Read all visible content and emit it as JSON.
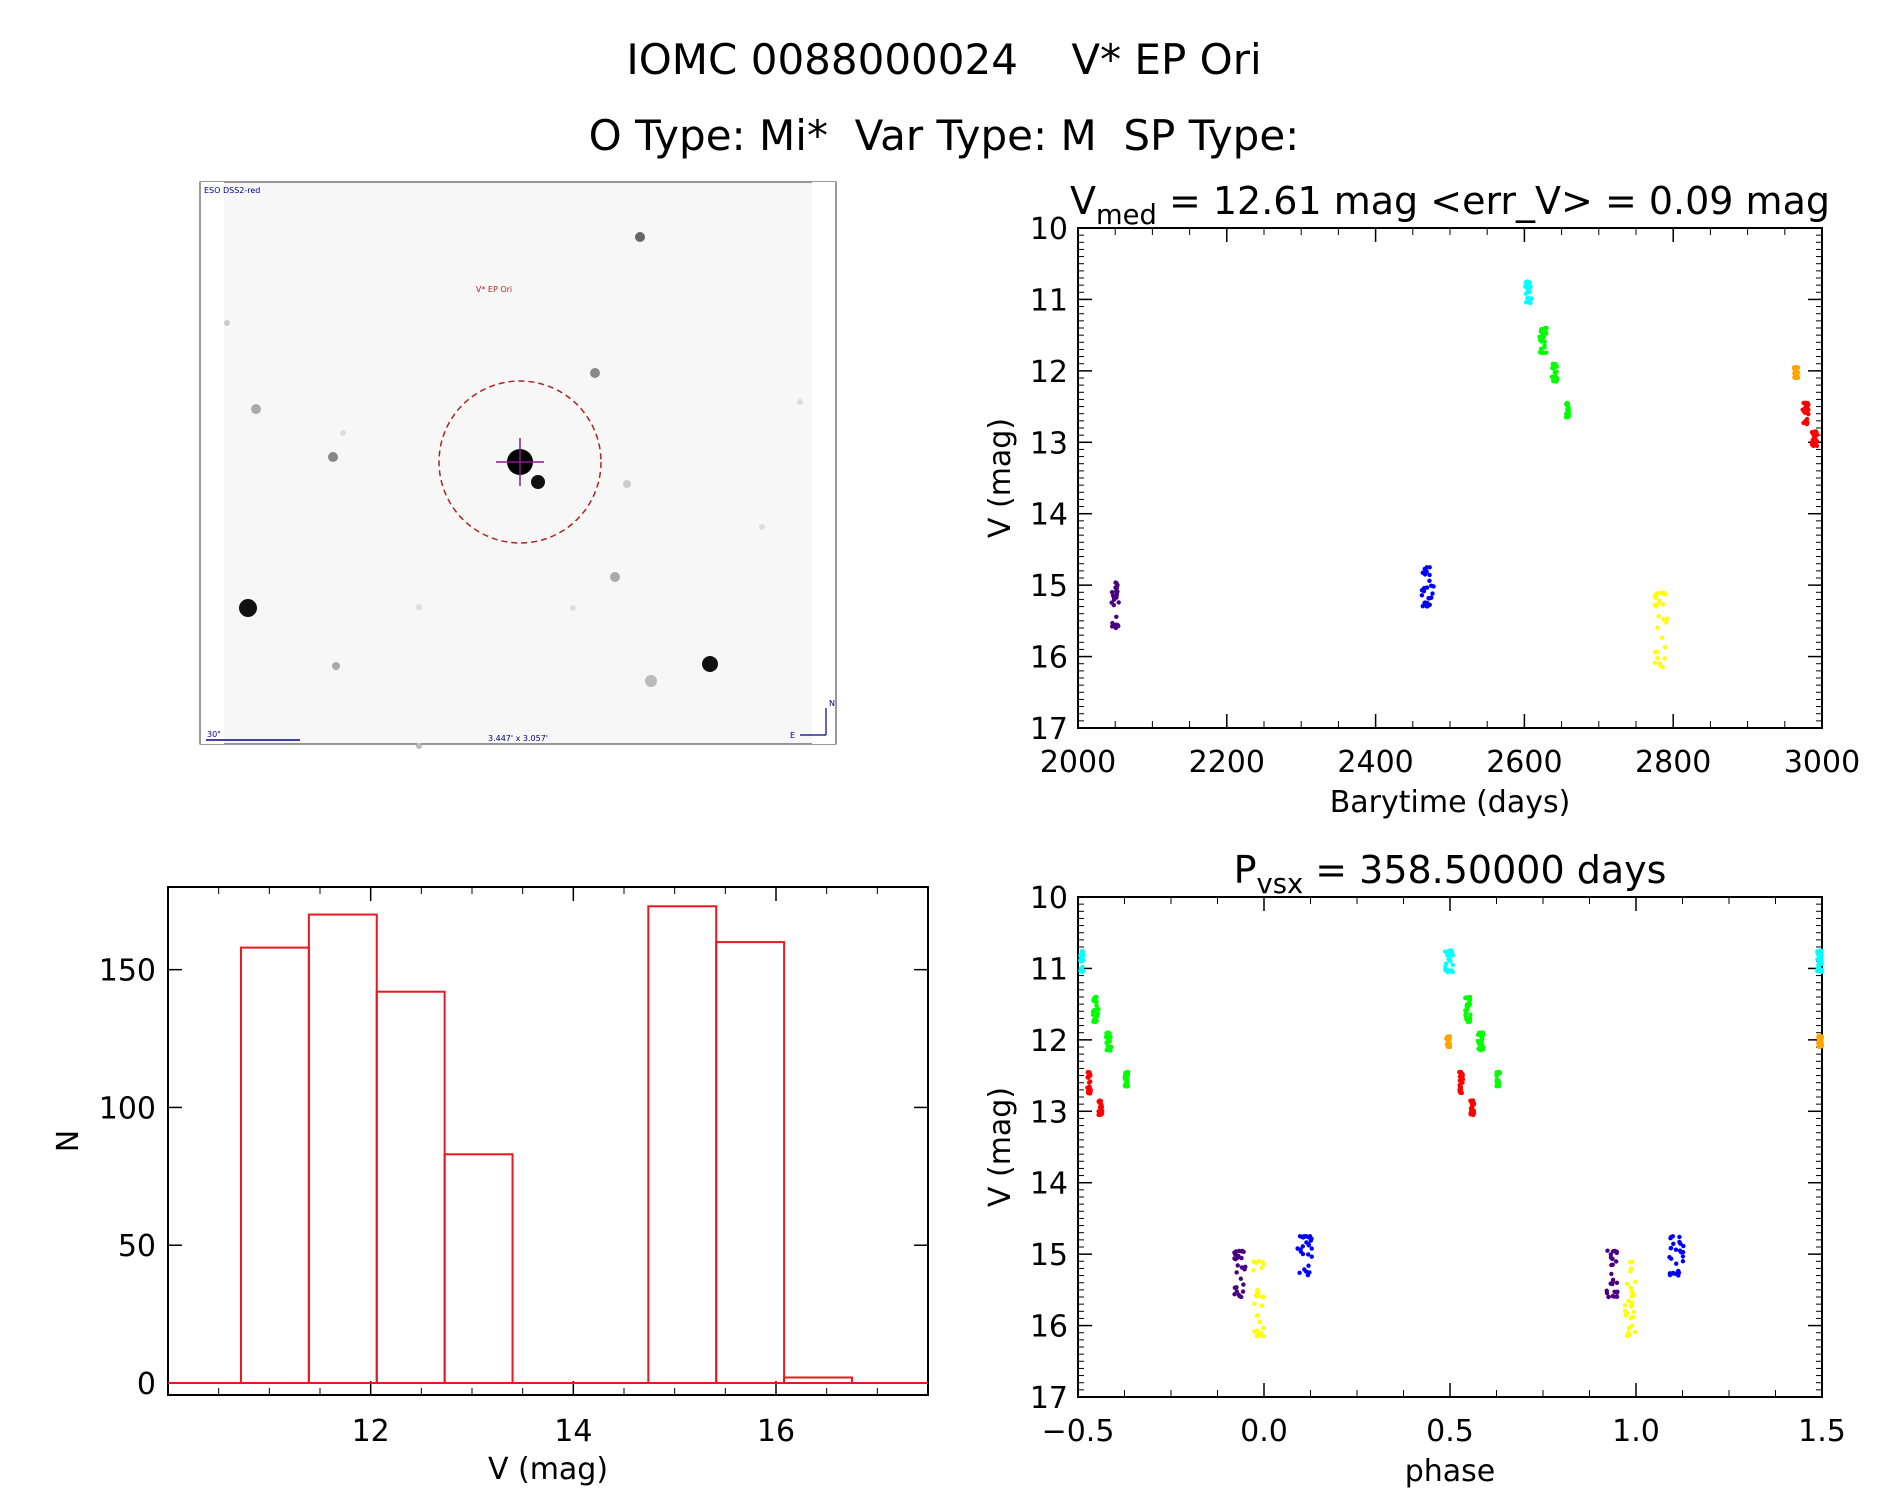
{
  "header": {
    "title": "IOMC 0088000024    V* EP Ori",
    "subtitle": "O Type: Mi*  Var Type: M  SP Type:"
  },
  "sky_image": {
    "survey_label": "ESO DSS2-red",
    "object_label": "V* EP Ori",
    "scale_label": "30\"",
    "fov_label": "3.447' x 3.057'",
    "north_label": "N",
    "east_label": "E"
  },
  "colors": {
    "histogram": "#e8191e",
    "circle": "#b22222",
    "crosshair": "#8b1a8b",
    "label_blue": "#00008b"
  },
  "chart_data": [
    {
      "type": "scatter",
      "id": "lightcurve",
      "title_parts": [
        "V",
        "med",
        " = 12.61 mag <err_V> = 0.09 mag"
      ],
      "xlabel": "Barytime (days)",
      "ylabel": "V (mag)",
      "xlim": [
        2000,
        3000
      ],
      "ylim": [
        17,
        10
      ],
      "xticks": [
        "2000",
        "2200",
        "2400",
        "2600",
        "2800",
        "3000"
      ],
      "yticks": [
        "10",
        "11",
        "12",
        "13",
        "14",
        "15",
        "16",
        "17"
      ],
      "groups": [
        {
          "color": "#4b0082",
          "x": [
            2044,
            2055
          ],
          "y": [
            14.95,
            15.6
          ]
        },
        {
          "color": "#0000ff",
          "x": [
            2462,
            2478
          ],
          "y": [
            14.75,
            15.3
          ]
        },
        {
          "color": "#00ffff",
          "x": [
            2601,
            2610
          ],
          "y": [
            10.75,
            11.05
          ]
        },
        {
          "color": "#00ff00",
          "x": [
            2620,
            2630
          ],
          "y": [
            11.4,
            11.75
          ]
        },
        {
          "color": "#00ff00",
          "x": [
            2637,
            2645
          ],
          "y": [
            11.9,
            12.15
          ]
        },
        {
          "color": "#00ff00",
          "x": [
            2656,
            2660
          ],
          "y": [
            12.45,
            12.65
          ]
        },
        {
          "color": "#ffff00",
          "x": [
            2775,
            2792
          ],
          "y": [
            15.1,
            16.15
          ]
        },
        {
          "color": "#ffa500",
          "x": [
            2962,
            2968
          ],
          "y": [
            11.95,
            12.1
          ]
        },
        {
          "color": "#ff0000",
          "x": [
            2974,
            2982
          ],
          "y": [
            12.45,
            12.75
          ]
        },
        {
          "color": "#ff0000",
          "x": [
            2986,
            2994
          ],
          "y": [
            12.85,
            13.05
          ]
        }
      ]
    },
    {
      "type": "bar",
      "id": "histogram",
      "xlabel": "V (mag)",
      "ylabel": "N",
      "xlim": [
        10.0,
        17.5
      ],
      "ylim": [
        0,
        180
      ],
      "xticks": [
        "12",
        "14",
        "16"
      ],
      "yticks": [
        "0",
        "50",
        "100",
        "150"
      ],
      "bins": [
        {
          "x0": 10.72,
          "x1": 11.39,
          "value": 158
        },
        {
          "x0": 11.39,
          "x1": 12.06,
          "value": 170
        },
        {
          "x0": 12.06,
          "x1": 12.73,
          "value": 142
        },
        {
          "x0": 12.73,
          "x1": 13.4,
          "value": 83
        },
        {
          "x0": 13.4,
          "x1": 14.07,
          "value": 0
        },
        {
          "x0": 14.07,
          "x1": 14.74,
          "value": 0
        },
        {
          "x0": 14.74,
          "x1": 15.41,
          "value": 173
        },
        {
          "x0": 15.41,
          "x1": 16.08,
          "value": 160
        },
        {
          "x0": 16.08,
          "x1": 16.75,
          "value": 2
        }
      ]
    },
    {
      "type": "scatter",
      "id": "phased",
      "title_parts": [
        "P",
        "vsx",
        " = 358.50000 days"
      ],
      "xlabel": "phase",
      "ylabel": "V (mag)",
      "xlim": [
        -0.5,
        1.5
      ],
      "ylim": [
        17,
        10
      ],
      "xticks": [
        "−0.5",
        "0.0",
        "0.5",
        "1.0",
        "1.5"
      ],
      "yticks": [
        "10",
        "11",
        "12",
        "13",
        "14",
        "15",
        "16",
        "17"
      ],
      "groups": [
        {
          "color": "#00ffff",
          "x": [
            -0.495,
            -0.485
          ],
          "y": [
            10.75,
            11.05
          ]
        },
        {
          "color": "#00ff00",
          "x": [
            -0.46,
            -0.445
          ],
          "y": [
            11.4,
            11.75
          ]
        },
        {
          "color": "#00ff00",
          "x": [
            -0.425,
            -0.41
          ],
          "y": [
            11.9,
            12.15
          ]
        },
        {
          "color": "#00ff00",
          "x": [
            -0.375,
            -0.365
          ],
          "y": [
            12.45,
            12.65
          ]
        },
        {
          "color": "#ff0000",
          "x": [
            -0.475,
            -0.465
          ],
          "y": [
            12.45,
            12.75
          ]
        },
        {
          "color": "#ff0000",
          "x": [
            -0.445,
            -0.435
          ],
          "y": [
            12.85,
            13.05
          ]
        },
        {
          "color": "#4b0082",
          "x": [
            -0.08,
            -0.05
          ],
          "y": [
            14.95,
            15.6
          ]
        },
        {
          "color": "#ffff00",
          "x": [
            -0.03,
            0.0
          ],
          "y": [
            15.1,
            16.15
          ]
        },
        {
          "color": "#0000ff",
          "x": [
            0.09,
            0.13
          ],
          "y": [
            14.75,
            15.3
          ]
        },
        {
          "color": "#00ffff",
          "x": [
            0.485,
            0.51
          ],
          "y": [
            10.75,
            11.05
          ]
        },
        {
          "color": "#ffa500",
          "x": [
            0.49,
            0.5
          ],
          "y": [
            11.95,
            12.1
          ]
        },
        {
          "color": "#00ff00",
          "x": [
            0.54,
            0.555
          ],
          "y": [
            11.4,
            11.75
          ]
        },
        {
          "color": "#00ff00",
          "x": [
            0.575,
            0.59
          ],
          "y": [
            11.9,
            12.15
          ]
        },
        {
          "color": "#00ff00",
          "x": [
            0.625,
            0.635
          ],
          "y": [
            12.45,
            12.65
          ]
        },
        {
          "color": "#ff0000",
          "x": [
            0.525,
            0.535
          ],
          "y": [
            12.45,
            12.75
          ]
        },
        {
          "color": "#ff0000",
          "x": [
            0.555,
            0.565
          ],
          "y": [
            12.85,
            13.05
          ]
        },
        {
          "color": "#4b0082",
          "x": [
            0.92,
            0.95
          ],
          "y": [
            14.95,
            15.6
          ]
        },
        {
          "color": "#ffff00",
          "x": [
            0.97,
            1.0
          ],
          "y": [
            15.1,
            16.15
          ]
        },
        {
          "color": "#0000ff",
          "x": [
            1.09,
            1.13
          ],
          "y": [
            14.75,
            15.3
          ]
        },
        {
          "color": "#00ffff",
          "x": [
            1.485,
            1.5
          ],
          "y": [
            10.75,
            11.05
          ]
        },
        {
          "color": "#ffa500",
          "x": [
            1.49,
            1.5
          ],
          "y": [
            11.95,
            12.1
          ]
        }
      ]
    }
  ]
}
